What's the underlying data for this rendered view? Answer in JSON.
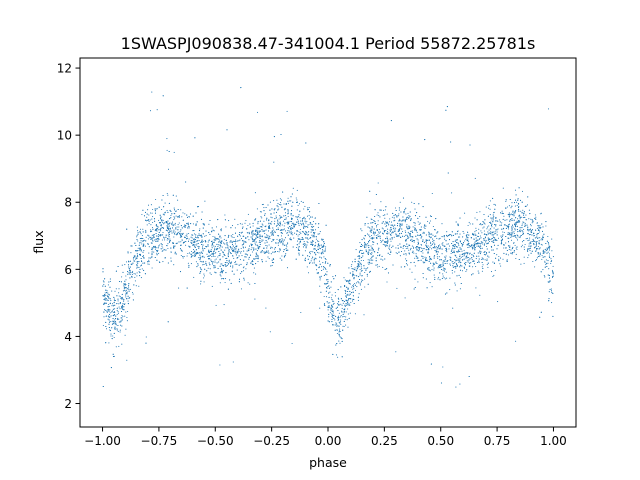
{
  "chart_data": {
    "type": "scatter",
    "title": "1SWASPJ090838.47-341004.1 Period 55872.25781s",
    "xlabel": "phase",
    "ylabel": "flux",
    "xlim": [
      -1.1,
      1.1
    ],
    "ylim": [
      1.3,
      12.3
    ],
    "x_ticks": [
      -1.0,
      -0.75,
      -0.5,
      -0.25,
      0.0,
      0.25,
      0.5,
      0.75,
      1.0
    ],
    "x_tick_labels": [
      "−1.00",
      "−0.75",
      "−0.50",
      "−0.25",
      "0.00",
      "0.25",
      "0.50",
      "0.75",
      "1.00"
    ],
    "y_ticks": [
      2,
      4,
      6,
      8,
      10,
      12
    ],
    "y_tick_labels": [
      "2",
      "4",
      "6",
      "8",
      "10",
      "12"
    ],
    "grid": false,
    "legend": "none",
    "point_color": "#1f77b4",
    "series": [
      {
        "x_range": [
          -1.0,
          1.0
        ],
        "curve_knots": {
          "x": [
            0.0,
            0.05,
            0.1,
            0.15,
            0.2,
            0.25,
            0.3,
            0.35,
            0.4,
            0.45,
            0.5,
            0.55,
            0.6,
            0.65,
            0.7,
            0.75,
            0.8,
            0.85,
            0.9,
            0.95,
            1.0
          ],
          "y": [
            5.2,
            4.4,
            5.3,
            6.3,
            6.9,
            7.1,
            7.2,
            7.1,
            6.8,
            6.6,
            6.4,
            6.4,
            6.5,
            6.7,
            6.9,
            7.0,
            7.2,
            7.3,
            7.1,
            6.7,
            5.8
          ]
        },
        "scatter_sd": 0.45
      }
    ]
  }
}
